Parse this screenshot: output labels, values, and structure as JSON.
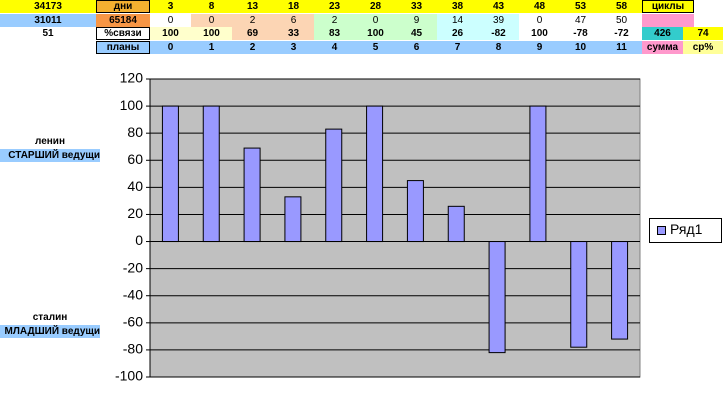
{
  "sheet": {
    "col_a": [
      "34173",
      "31011",
      "51"
    ],
    "col_b": [
      "дни",
      "65184",
      "%связи",
      "планы"
    ],
    "grid": [
      [
        3,
        8,
        13,
        18,
        23,
        28,
        33,
        38,
        43,
        48,
        53,
        58
      ],
      [
        0,
        0,
        2,
        6,
        2,
        0,
        9,
        14,
        39,
        0,
        47,
        50
      ],
      [
        100,
        100,
        69,
        33,
        83,
        100,
        45,
        26,
        -82,
        100,
        -78,
        -72
      ],
      [
        0,
        1,
        2,
        3,
        4,
        5,
        6,
        7,
        8,
        9,
        10,
        11
      ]
    ],
    "cycles_label": "циклы",
    "sum": 426,
    "avg": 74,
    "sum_label": "сумма",
    "avg_label": "ср%",
    "people": [
      {
        "name": "ленин",
        "role": "СТАРШИЙ ведущи"
      },
      {
        "name": "сталин",
        "role": "МЛАДШИЙ ведущи"
      }
    ]
  },
  "chart_data": {
    "type": "bar",
    "series": [
      {
        "name": "Ряд1",
        "color": "#9999ff",
        "values": [
          100,
          100,
          69,
          33,
          83,
          100,
          45,
          26,
          -82,
          100,
          -78,
          -72
        ]
      }
    ],
    "ylim": [
      -100,
      120
    ],
    "yticks": [
      -100,
      -80,
      -60,
      -40,
      -20,
      0,
      20,
      40,
      60,
      80,
      100,
      120
    ],
    "plot_background": "#c0c0c0",
    "legend": "right"
  }
}
